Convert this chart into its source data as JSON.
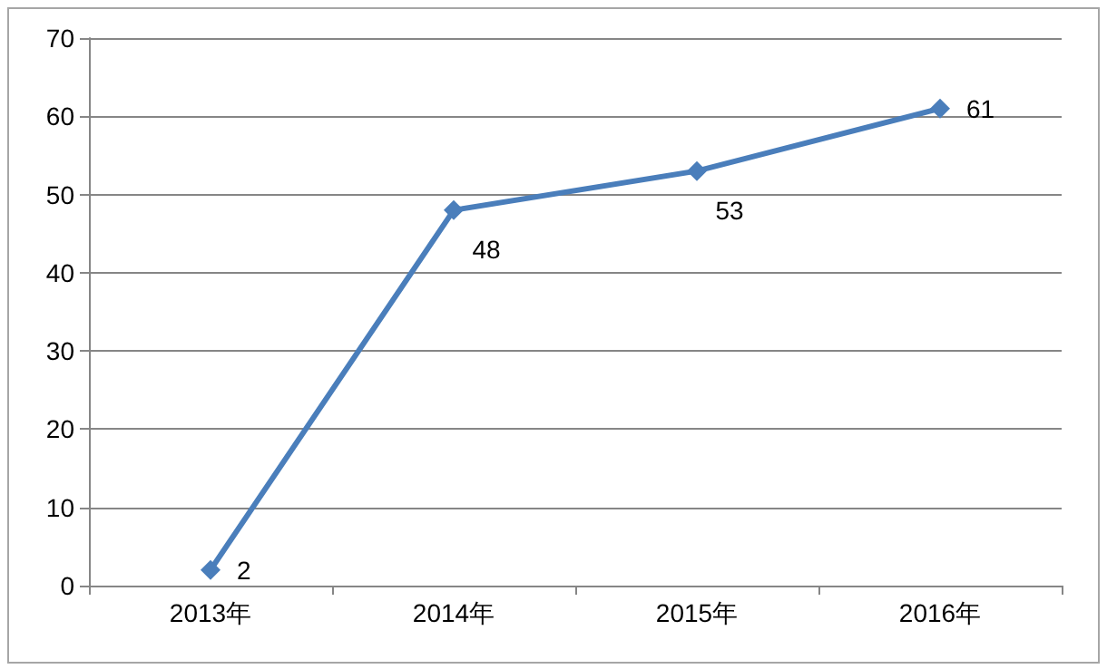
{
  "chart_data": {
    "type": "line",
    "categories": [
      "2013年",
      "2014年",
      "2015年",
      "2016年"
    ],
    "series": [
      {
        "color": "#4a7ebb",
        "values": [
          2,
          48,
          53,
          61
        ]
      }
    ],
    "ylim": [
      0,
      70
    ],
    "yticks": [
      0,
      10,
      20,
      30,
      40,
      50,
      60,
      70
    ],
    "grid": "y",
    "marker": "diamond",
    "line_style": "solid",
    "data_labels": true
  }
}
